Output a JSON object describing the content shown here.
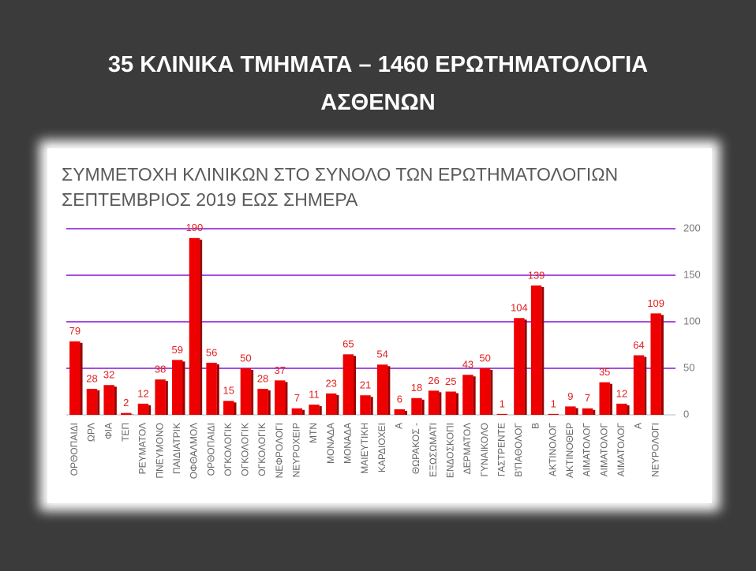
{
  "slide": {
    "title": "35 ΚΛΙΝΙΚΑ ΤΜΗΜΑΤΑ – 1460 ΕΡΩΤΗΜΑΤΟΛΟΓΙΑ ΑΣΘΕΝΩΝ"
  },
  "chart_data": {
    "type": "bar",
    "title": "ΣΥΜΜΕΤΟΧΗ ΚΛΙΝΙΚΩΝ ΣΤΟ ΣΥΝΟΛΟ ΤΩΝ ΕΡΩΤΗΜΑΤΟΛΟΓΙΩΝ ΣΕΠΤΕΜΒΡΙΟΣ 2019 ΕΩΣ ΣΗΜΕΡΑ",
    "categories": [
      "ΟΡΘΟΠΑΙΔΙ",
      "ΩΡΛ",
      "ΦΙΑ",
      "ΤΕΠ",
      "ΡΕΥΜΑΤΟΛ",
      "ΠΝΕΥΜΟΝΟ",
      "ΠΑΙΔΙΑΤΡΙΚ",
      "ΟΦΘΑΛΜΟΛ",
      "ΟΡΘΟΠΑΙΔΙ",
      "ΟΓΚΟΛΟΓΙΚ",
      "ΟΓΚΟΛΟΓΙΚ",
      "ΟΓΚΟΛΟΓΙΚ",
      "ΝΕΦΡΟΛΟΓΙ",
      "ΝΕΥΡΟΧΕΙΡ",
      "ΜΤΝ",
      "ΜΟΝΑΔΑ",
      "ΜΟΝΑΔΑ",
      "ΜΑΙΕΥΤΙΚΗ",
      "ΚΑΡΔΙΟΧΕΙ",
      "Α",
      "ΘΩΡΑΚΟΣ -",
      "ΕΞΩΣΩΜΑΤΙ",
      "ΕΝΔΟΣΚΟΠΙ",
      "ΔΕΡΜΑΤΟΛ",
      "ΓΥΝΑΙΚΟΛΟ",
      "ΓΑΣΤΡΕΝΤΕ",
      "Β'ΠΑΘΟΛΟΓ",
      "Β",
      "ΑΚΤΙΝΟΛΟΓ",
      "ΑΚΤΙΝΟΘΕΡ",
      "ΑΙΜΑΤΟΛΟΓ",
      "ΑΙΜΑΤΟΛΟΓ",
      "ΑΙΜΑΤΟΛΟΓ",
      "Α",
      "ΝΕΥΡΟΛΟΓΙ"
    ],
    "values": [
      79,
      28,
      32,
      2,
      12,
      38,
      59,
      190,
      56,
      15,
      50,
      28,
      37,
      7,
      11,
      23,
      65,
      21,
      54,
      6,
      18,
      26,
      25,
      43,
      50,
      1,
      104,
      139,
      1,
      9,
      7,
      35,
      12,
      64,
      109
    ],
    "color": "#ee0000",
    "label_color": "#e02020",
    "grid_color": "#a64ee0",
    "ylim": [
      0,
      200
    ],
    "yticks": [
      0,
      50,
      100,
      150,
      200
    ],
    "grid": true,
    "y_axis_side": "right"
  }
}
